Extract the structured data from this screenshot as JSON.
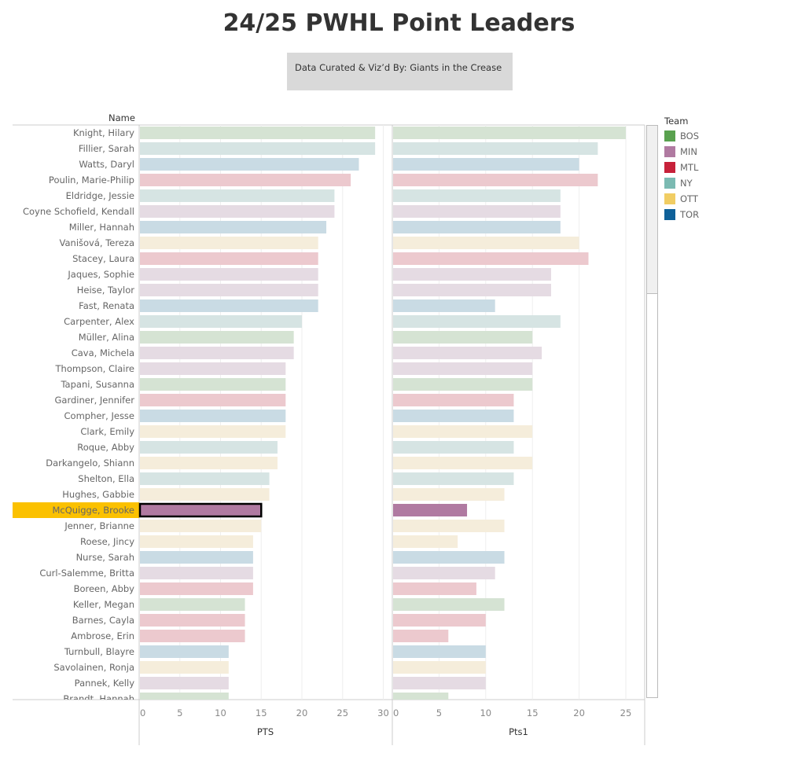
{
  "title": "24/25 PWHL Point Leaders",
  "credit": "Data Curated & Viz’d By: Giants in the Crease",
  "name_header": "Name",
  "legend": {
    "title": "Team",
    "items": [
      {
        "team": "BOS",
        "color": "#59a14f",
        "light": "#d5e3d3"
      },
      {
        "team": "MIN",
        "color": "#b07aa1",
        "light": "#e5dbe3"
      },
      {
        "team": "MTL",
        "color": "#c7213a",
        "light": "#ecc9ce"
      },
      {
        "team": "NY",
        "color": "#7bbab2",
        "light": "#d6e4e3"
      },
      {
        "team": "OTT",
        "color": "#f1cd63",
        "light": "#f5eddb"
      },
      {
        "team": "TOR",
        "color": "#0f6199",
        "light": "#c9dbe4"
      }
    ]
  },
  "highlight": {
    "name": "McQuigge, Brooke",
    "label_bg": "#fbc100"
  },
  "chart_data": [
    {
      "type": "bar",
      "orientation": "horizontal",
      "xlabel": "PTS",
      "xlim": [
        0,
        30
      ],
      "ticks": [
        0,
        5,
        10,
        15,
        20,
        25,
        30
      ],
      "grid": true
    },
    {
      "type": "bar",
      "orientation": "horizontal",
      "xlabel": "Pts1",
      "xlim": [
        0,
        27
      ],
      "ticks": [
        0,
        5,
        10,
        15,
        20,
        25
      ],
      "grid": true
    }
  ],
  "rows": [
    {
      "name": "Knight, Hilary",
      "team": "BOS",
      "pts": 29,
      "pts1": 25
    },
    {
      "name": "Fillier, Sarah",
      "team": "NY",
      "pts": 29,
      "pts1": 22
    },
    {
      "name": "Watts, Daryl",
      "team": "TOR",
      "pts": 27,
      "pts1": 20
    },
    {
      "name": "Poulin, Marie-Philip",
      "team": "MTL",
      "pts": 26,
      "pts1": 22
    },
    {
      "name": "Eldridge, Jessie",
      "team": "NY",
      "pts": 24,
      "pts1": 18
    },
    {
      "name": "Coyne Schofield, Kendall",
      "team": "MIN",
      "pts": 24,
      "pts1": 18
    },
    {
      "name": "Miller, Hannah",
      "team": "TOR",
      "pts": 23,
      "pts1": 18
    },
    {
      "name": "Vanišová, Tereza",
      "team": "OTT",
      "pts": 22,
      "pts1": 20
    },
    {
      "name": "Stacey, Laura",
      "team": "MTL",
      "pts": 22,
      "pts1": 21
    },
    {
      "name": "Jaques, Sophie",
      "team": "MIN",
      "pts": 22,
      "pts1": 17
    },
    {
      "name": "Heise, Taylor",
      "team": "MIN",
      "pts": 22,
      "pts1": 17
    },
    {
      "name": "Fast, Renata",
      "team": "TOR",
      "pts": 22,
      "pts1": 11
    },
    {
      "name": "Carpenter, Alex",
      "team": "NY",
      "pts": 20,
      "pts1": 18
    },
    {
      "name": "Müller, Alina",
      "team": "BOS",
      "pts": 19,
      "pts1": 15
    },
    {
      "name": "Cava, Michela",
      "team": "MIN",
      "pts": 19,
      "pts1": 16
    },
    {
      "name": "Thompson, Claire",
      "team": "MIN",
      "pts": 18,
      "pts1": 15
    },
    {
      "name": "Tapani, Susanna",
      "team": "BOS",
      "pts": 18,
      "pts1": 15
    },
    {
      "name": "Gardiner, Jennifer",
      "team": "MTL",
      "pts": 18,
      "pts1": 13
    },
    {
      "name": "Compher, Jesse",
      "team": "TOR",
      "pts": 18,
      "pts1": 13
    },
    {
      "name": "Clark, Emily",
      "team": "OTT",
      "pts": 18,
      "pts1": 15
    },
    {
      "name": "Roque, Abby",
      "team": "NY",
      "pts": 17,
      "pts1": 13
    },
    {
      "name": "Darkangelo, Shiann",
      "team": "OTT",
      "pts": 17,
      "pts1": 15
    },
    {
      "name": "Shelton, Ella",
      "team": "NY",
      "pts": 16,
      "pts1": 13
    },
    {
      "name": "Hughes, Gabbie",
      "team": "OTT",
      "pts": 16,
      "pts1": 12
    },
    {
      "name": "McQuigge, Brooke",
      "team": "MIN",
      "pts": 15,
      "pts1": 8
    },
    {
      "name": "Jenner, Brianne",
      "team": "OTT",
      "pts": 15,
      "pts1": 12
    },
    {
      "name": "Roese, Jincy",
      "team": "OTT",
      "pts": 14,
      "pts1": 7
    },
    {
      "name": "Nurse, Sarah",
      "team": "TOR",
      "pts": 14,
      "pts1": 12
    },
    {
      "name": "Curl-Salemme, Britta",
      "team": "MIN",
      "pts": 14,
      "pts1": 11
    },
    {
      "name": "Boreen, Abby",
      "team": "MTL",
      "pts": 14,
      "pts1": 9
    },
    {
      "name": "Keller, Megan",
      "team": "BOS",
      "pts": 13,
      "pts1": 12
    },
    {
      "name": "Barnes, Cayla",
      "team": "MTL",
      "pts": 13,
      "pts1": 10
    },
    {
      "name": "Ambrose, Erin",
      "team": "MTL",
      "pts": 13,
      "pts1": 6
    },
    {
      "name": "Turnbull, Blayre",
      "team": "TOR",
      "pts": 11,
      "pts1": 10
    },
    {
      "name": "Savolainen, Ronja",
      "team": "OTT",
      "pts": 11,
      "pts1": 10
    },
    {
      "name": "Pannek, Kelly",
      "team": "MIN",
      "pts": 11,
      "pts1": 10
    },
    {
      "name": "Brandt, Hannah",
      "team": "BOS",
      "pts": 11,
      "pts1": 6
    }
  ]
}
